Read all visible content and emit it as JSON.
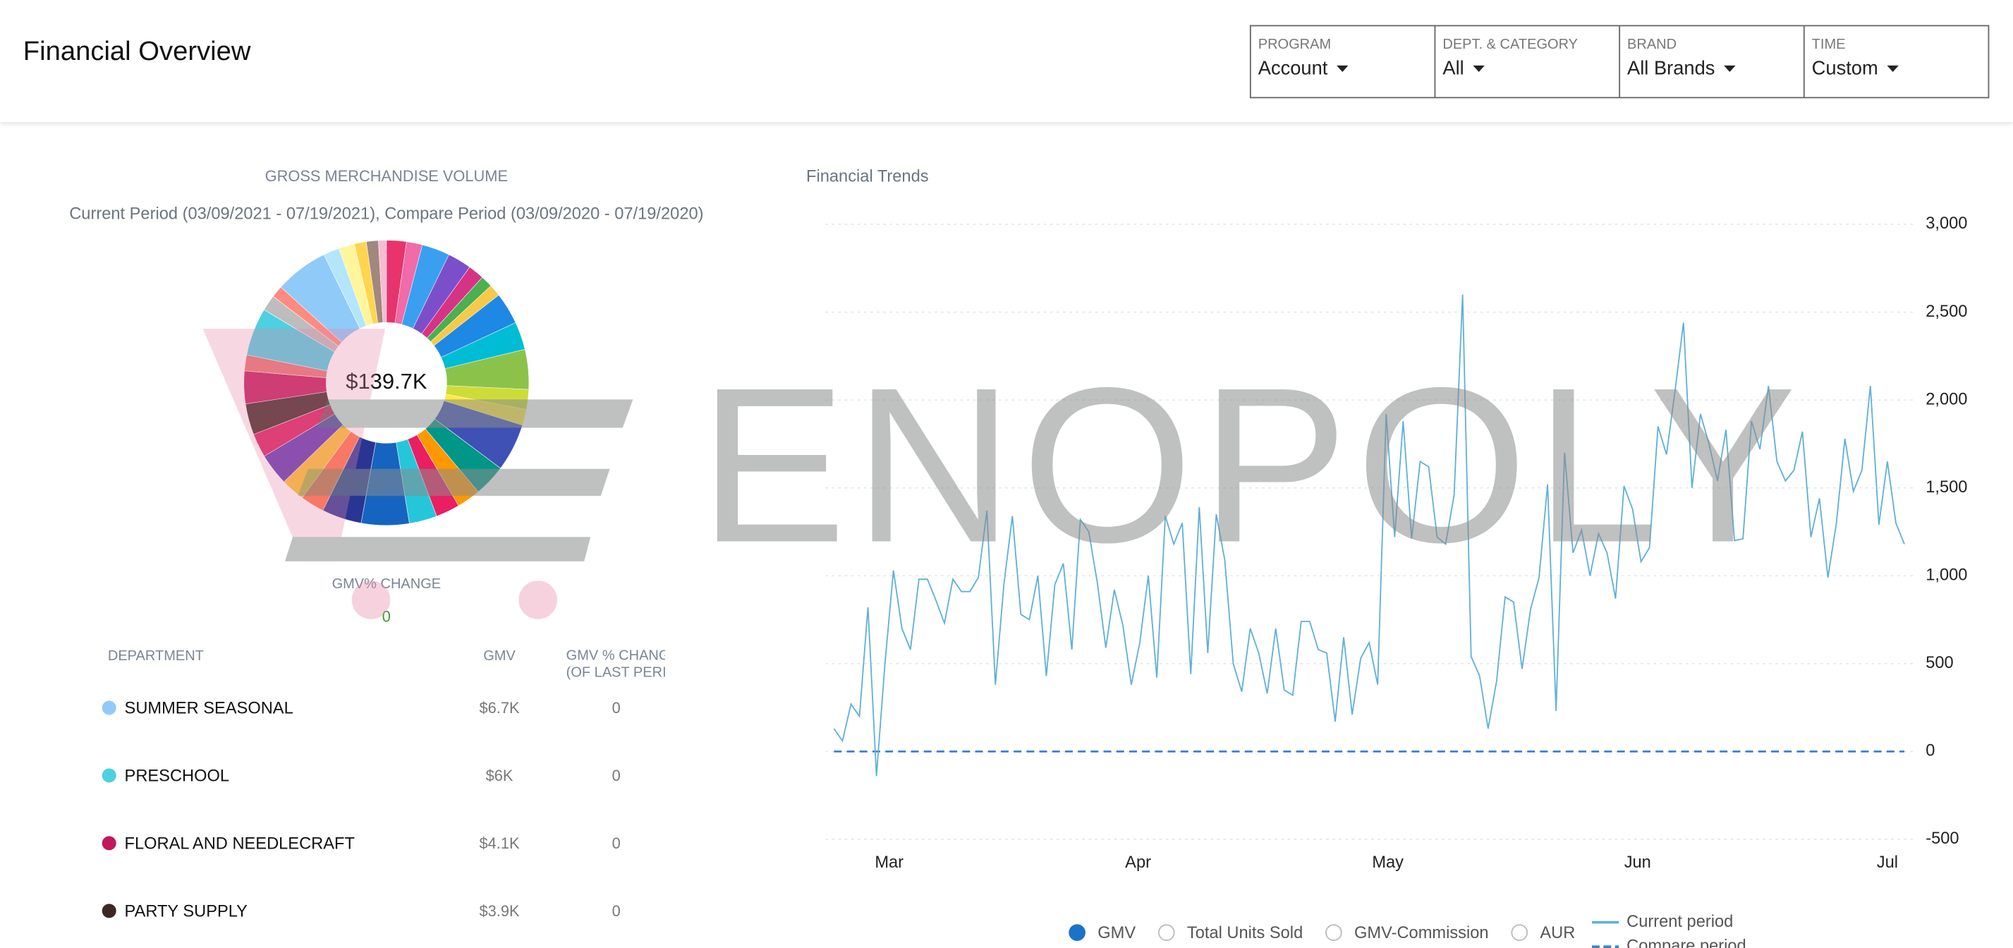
{
  "header": {
    "title": "Financial Overview"
  },
  "filters": [
    {
      "label": "PROGRAM",
      "value": "Account"
    },
    {
      "label": "DEPT. & CATEGORY",
      "value": "All"
    },
    {
      "label": "BRAND",
      "value": "All Brands"
    },
    {
      "label": "TIME",
      "value": "Custom"
    }
  ],
  "watermark": "ENOPOLY",
  "chart_data": [
    {
      "type": "pie",
      "title": "GROSS MERCHANDISE VOLUME",
      "subtitle": "Current Period (03/09/2021 - 07/19/2021), Compare Period (03/09/2020 - 07/19/2020)",
      "center_label": "$139.7K",
      "change_label": "GMV% CHANGE",
      "change_value": 0,
      "values": [
        2.5,
        2.0,
        3.5,
        3.0,
        2.0,
        1.5,
        1.5,
        4.0,
        3.5,
        5.0,
        2.5,
        2.0,
        6.0,
        4.0,
        3.0,
        3.0,
        3.5,
        6.0,
        5.0,
        3.0,
        3.0,
        4.0,
        3.0,
        3.9,
        4.1,
        2.0,
        6.0,
        2.0,
        1.5,
        6.7,
        2.0,
        2.0,
        1.5,
        1.5,
        1.0
      ],
      "colors": [
        "#e8336d",
        "#f06ba8",
        "#3a9ff0",
        "#7b4fc9",
        "#d63384",
        "#4caf50",
        "#f7c948",
        "#1e88e5",
        "#00bcd4",
        "#8bc34a",
        "#cddc39",
        "#ffeb3b",
        "#3f51b5",
        "#009688",
        "#ff9800",
        "#e91e63",
        "#26c6da",
        "#1565c0",
        "#283593",
        "#ff7043",
        "#fbc02d",
        "#5e35b1",
        "#d81b60",
        "#3e2723",
        "#c2185b",
        "#e57373",
        "#4dd0e1",
        "#bdbdbd",
        "#ff8a80",
        "#90caf9",
        "#b3e5fc",
        "#fff59d",
        "#ffd54f",
        "#a1887f",
        "#f8bbd0"
      ]
    },
    {
      "type": "line",
      "title": "Financial Trends",
      "xlim": [
        -1,
        127
      ],
      "xticks": [
        {
          "value": 6.5,
          "label": "Mar"
        },
        {
          "value": 35.8,
          "label": "Apr"
        },
        {
          "value": 65.2,
          "label": "May"
        },
        {
          "value": 94.6,
          "label": "Jun"
        },
        {
          "value": 124,
          "label": "Jul"
        }
      ],
      "ylim": [
        -500,
        3000
      ],
      "yticks": [
        -500,
        0,
        500,
        {
          "value": 1000,
          "label": "1,000"
        },
        {
          "value": 1500,
          "label": "1,500"
        },
        {
          "value": 2000,
          "label": "2,000"
        },
        {
          "value": 2500,
          "label": "2,500"
        },
        {
          "value": 3000,
          "label": "3,000"
        }
      ],
      "grid": true,
      "metrics": [
        {
          "label": "GMV",
          "selected": true
        },
        {
          "label": "Total Units Sold",
          "selected": false
        },
        {
          "label": "GMV-Commission",
          "selected": false
        },
        {
          "label": "AUR",
          "selected": false
        }
      ],
      "series": [
        {
          "name": "Current period",
          "color": "#5fb0d8",
          "dash": false,
          "values": [
            130,
            60,
            270,
            200,
            820,
            -140,
            500,
            1030,
            700,
            580,
            980,
            980,
            860,
            730,
            980,
            910,
            910,
            990,
            1370,
            380,
            950,
            1340,
            780,
            750,
            1000,
            430,
            950,
            1070,
            580,
            1320,
            1250,
            960,
            590,
            920,
            720,
            380,
            620,
            1000,
            420,
            1340,
            1180,
            1300,
            440,
            1390,
            560,
            1350,
            1090,
            500,
            340,
            700,
            560,
            330,
            700,
            350,
            320,
            740,
            740,
            580,
            560,
            170,
            650,
            210,
            530,
            620,
            380,
            1920,
            1220,
            1880,
            1210,
            1650,
            1620,
            1220,
            1180,
            1460,
            2600,
            540,
            430,
            130,
            400,
            880,
            850,
            470,
            810,
            990,
            1520,
            230,
            1700,
            1130,
            1260,
            1000,
            1240,
            1130,
            870,
            1510,
            1380,
            1080,
            1160,
            1850,
            1690,
            2050,
            2440,
            1500,
            1920,
            1750,
            1540,
            1830,
            1200,
            1210,
            1880,
            1720,
            2080,
            1650,
            1540,
            1600,
            1820,
            1220,
            1440,
            990,
            1300,
            1780,
            1480,
            1600,
            2080,
            1290,
            1650,
            1300,
            1180
          ]
        },
        {
          "name": "Compare period",
          "color": "#3f7fd0",
          "dash": true,
          "values": [
            0,
            0,
            0,
            0,
            0,
            0,
            0,
            0,
            0,
            0,
            0,
            0,
            0,
            0,
            0,
            0,
            0,
            0,
            0,
            0,
            0,
            0,
            0,
            0,
            0,
            0,
            0,
            0,
            0,
            0,
            0,
            0,
            0,
            0,
            0,
            0,
            0,
            0,
            0,
            0,
            0,
            0,
            0,
            0,
            0,
            0,
            0,
            0,
            0,
            0,
            0,
            0,
            0,
            0,
            0,
            0,
            0,
            0,
            0,
            0,
            0,
            0,
            0,
            0,
            0,
            0,
            0,
            0,
            0,
            0,
            0,
            0,
            0,
            0,
            0,
            0,
            0,
            0,
            0,
            0,
            0,
            0,
            0,
            0,
            0,
            0,
            0,
            0,
            0,
            0,
            0,
            0,
            0,
            0,
            0,
            0,
            0,
            0,
            0,
            0,
            0,
            0,
            0,
            0,
            0,
            0,
            0,
            0,
            0,
            0,
            0,
            0,
            0,
            0,
            0,
            0,
            0,
            0,
            0,
            0,
            0,
            0,
            0,
            0,
            0,
            0,
            0
          ]
        }
      ]
    }
  ],
  "table": {
    "headers": [
      "DEPARTMENT",
      "GMV",
      "GMV % CHANGE (OF LAST PERIOD)"
    ],
    "rows": [
      {
        "color": "#90caf9",
        "department": "SUMMER SEASONAL",
        "gmv": "$6.7K",
        "change": 0
      },
      {
        "color": "#4dd0e1",
        "department": "PRESCHOOL",
        "gmv": "$6K",
        "change": 0
      },
      {
        "color": "#c2185b",
        "department": "FLORAL AND NEEDLECRAFT",
        "gmv": "$4.1K",
        "change": 0
      },
      {
        "color": "#3e2723",
        "department": "PARTY SUPPLY",
        "gmv": "$3.9K",
        "change": 0
      }
    ]
  }
}
